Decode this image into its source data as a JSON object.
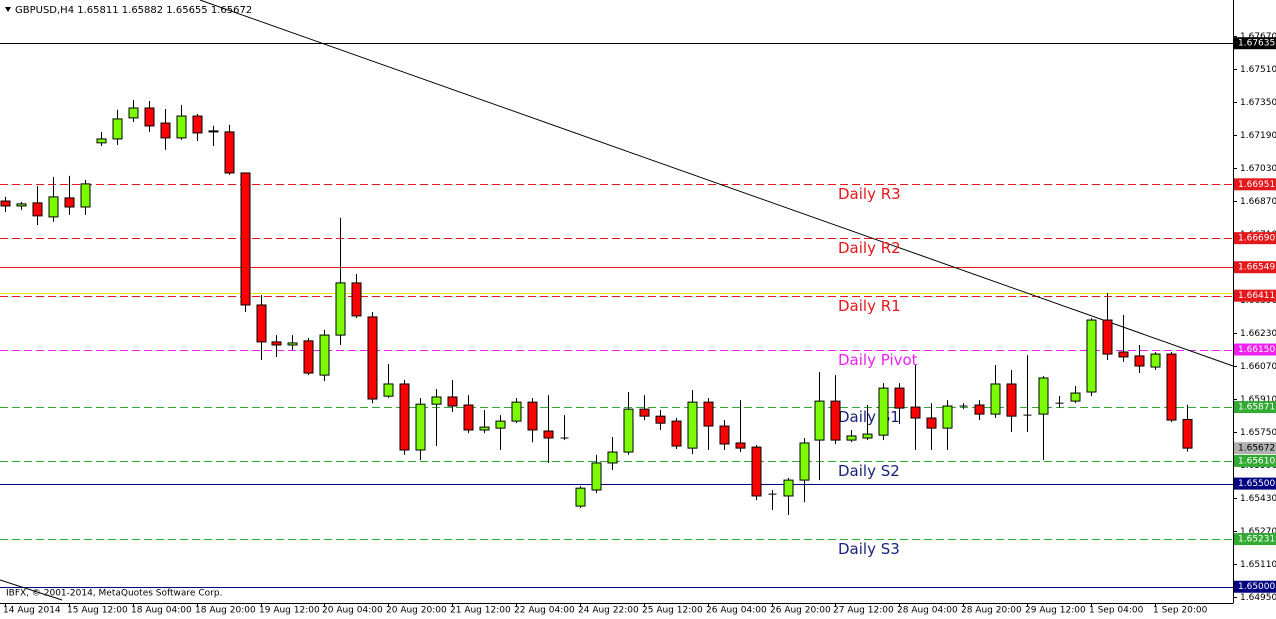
{
  "chart_data": {
    "type": "candlestick",
    "title": "GBPUSD,H4 1.65811 1.65882 1.65655 1.65672",
    "copyright": "IBFX, © 2001-2014, MetaQuotes Software Corp.",
    "categories": [
      "14 Aug 2014",
      null,
      null,
      null,
      "15 Aug 12:00",
      null,
      null,
      null,
      "18 Aug 04:00",
      null,
      null,
      null,
      "18 Aug 20:00",
      null,
      null,
      null,
      "19 Aug 12:00",
      null,
      null,
      null,
      "20 Aug 04:00",
      null,
      null,
      null,
      "20 Aug 20:00",
      null,
      null,
      null,
      "21 Aug 12:00",
      null,
      null,
      null,
      "22 Aug 04:00",
      null,
      null,
      null,
      "24 Aug 22:00",
      null,
      null,
      null,
      "25 Aug 12:00",
      null,
      null,
      null,
      "26 Aug 04:00",
      null,
      null,
      null,
      "26 Aug 20:00",
      null,
      null,
      null,
      "27 Aug 12:00",
      null,
      null,
      null,
      "28 Aug 04:00",
      null,
      null,
      null,
      "28 Aug 20:00",
      null,
      null,
      null,
      "29 Aug 12:00",
      null,
      null,
      null,
      "1 Sep 04:00",
      null,
      null,
      null,
      "1 Sep 20:00",
      null,
      null
    ],
    "open": [
      1.6687,
      1.66846,
      1.66861,
      1.66793,
      1.66885,
      1.66841,
      1.67152,
      1.67171,
      1.67273,
      1.67321,
      1.67248,
      1.67176,
      1.67282,
      1.6721,
      1.67205,
      1.67006,
      1.66366,
      1.66187,
      1.66172,
      1.66192,
      1.66026,
      1.6622,
      1.66473,
      1.66308,
      1.65924,
      1.65983,
      1.65663,
      1.65885,
      1.6592,
      1.65881,
      1.6576,
      1.65769,
      1.65803,
      1.65895,
      1.65755,
      1.65721,
      1.65391,
      1.65469,
      1.656,
      1.65653,
      1.65861,
      1.65827,
      1.65803,
      1.65672,
      1.65895,
      1.65779,
      1.65697,
      1.65677,
      1.65449,
      1.6544,
      1.65517,
      1.65711,
      1.659,
      1.65711,
      1.65721,
      1.65735,
      1.65963,
      1.65871,
      1.65818,
      1.65769,
      1.65876,
      1.65881,
      1.65837,
      1.65983,
      1.65832,
      1.65837,
      1.6589,
      1.659,
      1.65944,
      1.66293,
      1.66138,
      1.66119,
      1.66065,
      1.66128,
      1.65811
    ],
    "high": [
      1.6689,
      1.66866,
      1.66943,
      1.66987,
      1.66992,
      1.66972,
      1.67205,
      1.67312,
      1.6736,
      1.67355,
      1.67316,
      1.67336,
      1.67292,
      1.67234,
      1.67239,
      1.67006,
      1.66414,
      1.6622,
      1.6622,
      1.66206,
      1.66245,
      1.66788,
      1.66516,
      1.66332,
      1.6608,
      1.66002,
      1.65915,
      1.65958,
      1.66002,
      1.65929,
      1.65857,
      1.65832,
      1.65915,
      1.65915,
      1.65929,
      1.65832,
      1.65488,
      1.65639,
      1.65726,
      1.65944,
      1.65929,
      1.65857,
      1.65818,
      1.65954,
      1.65915,
      1.65808,
      1.65905,
      1.65687,
      1.65469,
      1.65527,
      1.65721,
      1.66041,
      1.66026,
      1.6576,
      1.65881,
      1.65987,
      1.65987,
      1.66075,
      1.6589,
      1.65905,
      1.6589,
      1.65905,
      1.66075,
      1.66051,
      1.66123,
      1.66022,
      1.65924,
      1.65973,
      1.66303,
      1.66424,
      1.66318,
      1.66172,
      1.66138,
      1.66138,
      1.65882
    ],
    "low": [
      1.66817,
      1.66827,
      1.66754,
      1.66769,
      1.66803,
      1.66803,
      1.67137,
      1.67142,
      1.67253,
      1.67205,
      1.67118,
      1.67166,
      1.67161,
      1.67137,
      1.66997,
      1.66332,
      1.66099,
      1.66114,
      1.66148,
      1.66026,
      1.65997,
      1.66172,
      1.66303,
      1.6589,
      1.65915,
      1.65639,
      1.65614,
      1.65682,
      1.65847,
      1.65745,
      1.65745,
      1.65663,
      1.65793,
      1.65701,
      1.656,
      1.65711,
      1.65381,
      1.65454,
      1.65566,
      1.65639,
      1.65808,
      1.6576,
      1.65668,
      1.65643,
      1.65663,
      1.65663,
      1.65653,
      1.6542,
      1.65372,
      1.65348,
      1.6541,
      1.65517,
      1.65692,
      1.65701,
      1.65711,
      1.65711,
      1.65789,
      1.65663,
      1.65663,
      1.65663,
      1.65861,
      1.65808,
      1.65818,
      1.6575,
      1.6575,
      1.65614,
      1.65866,
      1.6589,
      1.65924,
      1.66099,
      1.6609,
      1.66036,
      1.66051,
      1.65798,
      1.65655
    ],
    "close": [
      1.66846,
      1.66856,
      1.66798,
      1.6689,
      1.66841,
      1.66953,
      1.67171,
      1.67268,
      1.67321,
      1.67234,
      1.67176,
      1.67282,
      1.672,
      1.67205,
      1.67006,
      1.66366,
      1.66187,
      1.66172,
      1.66182,
      1.66036,
      1.6622,
      1.66473,
      1.66313,
      1.6591,
      1.65983,
      1.65663,
      1.65885,
      1.6592,
      1.65876,
      1.6576,
      1.65774,
      1.65803,
      1.65895,
      1.6576,
      1.65721,
      1.65721,
      1.65478,
      1.656,
      1.65653,
      1.65861,
      1.65827,
      1.65793,
      1.65682,
      1.65895,
      1.65779,
      1.65692,
      1.65672,
      1.6544,
      1.65449,
      1.65517,
      1.65697,
      1.659,
      1.65711,
      1.65731,
      1.6574,
      1.65963,
      1.65866,
      1.65818,
      1.65769,
      1.65876,
      1.65876,
      1.65837,
      1.65983,
      1.65827,
      1.65832,
      1.66012,
      1.6589,
      1.65939,
      1.66293,
      1.66128,
      1.66114,
      1.6607,
      1.66128,
      1.65808,
      1.65672
    ],
    "up_color": "#7cfc00",
    "down_color": "#ff0000",
    "ylim": [
      1.64926,
      1.6783
    ],
    "yticks": [
      {
        "value": 1.6767,
        "label": "1.67670"
      },
      {
        "value": 1.6751,
        "label": "1.67510"
      },
      {
        "value": 1.6735,
        "label": "1.67350"
      },
      {
        "value": 1.6719,
        "label": "1.67190"
      },
      {
        "value": 1.6703,
        "label": "1.67030"
      },
      {
        "value": 1.6687,
        "label": "1.66870"
      },
      {
        "value": 1.6671,
        "label": "1.66710"
      },
      {
        "value": 1.6655,
        "label": "1.66550"
      },
      {
        "value": 1.6639,
        "label": "1.66390"
      },
      {
        "value": 1.6623,
        "label": "1.66230"
      },
      {
        "value": 1.6607,
        "label": "1.66070"
      },
      {
        "value": 1.6591,
        "label": "1.65910"
      },
      {
        "value": 1.6575,
        "label": "1.65750"
      },
      {
        "value": 1.6559,
        "label": "1.65590"
      },
      {
        "value": 1.6543,
        "label": "1.65430"
      },
      {
        "value": 1.6527,
        "label": "1.65270"
      },
      {
        "value": 1.6511,
        "label": "1.65110"
      },
      {
        "value": 1.6495,
        "label": "1.64950"
      }
    ],
    "levels": [
      {
        "value": 1.67635,
        "label": "1.67635",
        "color": "#000000",
        "dash": false
      },
      {
        "value": 1.66951,
        "label": "1.66951",
        "color": "#e4171b",
        "dash": true,
        "name": "Daily R3",
        "text_color": "#e4171b"
      },
      {
        "value": 1.6669,
        "label": "1.66690",
        "color": "#e4171b",
        "dash": true,
        "name": "Daily R2",
        "text_color": "#e4171b"
      },
      {
        "value": 1.66549,
        "label": "1.66549",
        "color": "#e4171b",
        "dash": false
      },
      {
        "value": 1.66424,
        "color": "#e6e600",
        "dash": false
      },
      {
        "value": 1.66411,
        "label": "1.66411",
        "color": "#e4171b",
        "dash": true,
        "name": "Daily R1",
        "text_color": "#e4171b"
      },
      {
        "value": 1.6615,
        "label": "1.66150",
        "color": "#ee22ee",
        "dash": true,
        "name": "Daily Pivot",
        "text_color": "#ee22ee"
      },
      {
        "value": 1.65871,
        "label": "1.65871",
        "color": "#33aa33",
        "dash": true,
        "name": "Daily S1",
        "text_color": "#1a237e"
      },
      {
        "value": 1.6561,
        "label": "1.65610",
        "color": "#33aa33",
        "dash": true,
        "name": "Daily S2",
        "text_color": "#1a237e"
      },
      {
        "value": 1.655,
        "label": "1.65500",
        "color": "#000080",
        "dash": false
      },
      {
        "value": 1.65231,
        "label": "1.65231",
        "color": "#33aa33",
        "dash": true,
        "name": "Daily S3",
        "text_color": "#1a237e"
      },
      {
        "value": 1.65,
        "label": "1.65000",
        "color": "#000080",
        "dash": false
      }
    ],
    "current_price": {
      "value": 1.65672,
      "label": "1.65672",
      "color": "#b0b0b0"
    }
  }
}
